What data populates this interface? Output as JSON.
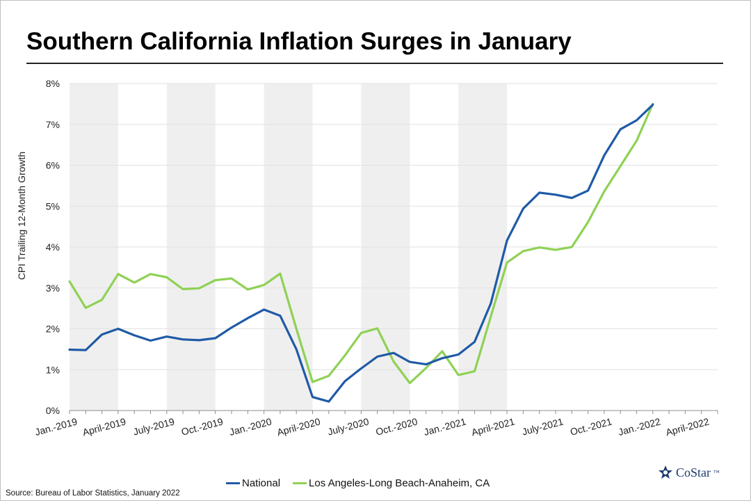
{
  "title": "Southern California Inflation Surges in January",
  "source": "Source: Bureau of Labor Statistics, January 2022",
  "logo_text": "CoStar",
  "logo_tm": "™",
  "colors": {
    "national": "#1f5aa6",
    "la": "#8fd155",
    "band": "#efefef",
    "grid": "#e2e2e2"
  },
  "chart_data": {
    "type": "line",
    "title": "Southern California Inflation Surges in January",
    "ylabel": "CPI Trailing 12-Month Growth",
    "xlabel": "",
    "ylim": [
      0,
      8
    ],
    "y_ticks": [
      "0%",
      "1%",
      "2%",
      "3%",
      "4%",
      "5%",
      "6%",
      "7%",
      "8%"
    ],
    "x_tick_labels": [
      "Jan.-2019",
      "April-2019",
      "July-2019",
      "Oct.-2019",
      "Jan.-2020",
      "April-2020",
      "July-2020",
      "Oct.-2020",
      "Jan.-2021",
      "April-2021",
      "July-2021",
      "Oct.-2021",
      "Jan.-2022",
      "April-2022"
    ],
    "x": [
      "Jan.-2019",
      "Feb.-2019",
      "Mar.-2019",
      "April-2019",
      "May-2019",
      "June-2019",
      "July-2019",
      "Aug.-2019",
      "Sep.-2019",
      "Oct.-2019",
      "Nov.-2019",
      "Dec.-2019",
      "Jan.-2020",
      "Feb.-2020",
      "Mar.-2020",
      "April-2020",
      "May-2020",
      "June-2020",
      "July-2020",
      "Aug.-2020",
      "Sep.-2020",
      "Oct.-2020",
      "Nov.-2020",
      "Dec.-2020",
      "Jan.-2021",
      "Feb.-2021",
      "Mar.-2021",
      "April-2021",
      "May-2021",
      "June-2021",
      "July-2021",
      "Aug.-2021",
      "Sep.-2021",
      "Oct.-2021",
      "Nov.-2021",
      "Dec.-2021",
      "Jan.-2022"
    ],
    "series": [
      {
        "name": "National",
        "values": [
          1.49,
          1.48,
          1.86,
          2.0,
          1.84,
          1.71,
          1.81,
          1.74,
          1.72,
          1.77,
          2.03,
          2.26,
          2.47,
          2.32,
          1.5,
          0.33,
          0.22,
          0.72,
          1.03,
          1.32,
          1.41,
          1.19,
          1.13,
          1.28,
          1.37,
          1.68,
          2.62,
          4.16,
          4.94,
          5.33,
          5.28,
          5.2,
          5.38,
          6.24,
          6.88,
          7.1,
          7.48
        ]
      },
      {
        "name": "Los Angeles-Long Beach-Anaheim, CA",
        "values": [
          3.16,
          2.51,
          2.71,
          3.34,
          3.13,
          3.34,
          3.26,
          2.97,
          2.99,
          3.19,
          3.23,
          2.96,
          3.07,
          3.35,
          2.0,
          0.7,
          0.85,
          1.35,
          1.9,
          2.01,
          1.2,
          0.67,
          1.04,
          1.45,
          0.87,
          0.96,
          2.3,
          3.62,
          3.9,
          3.99,
          3.93,
          4.0,
          4.61,
          5.36,
          5.98,
          6.6,
          7.5
        ]
      }
    ],
    "grid": true,
    "shaded_bands": "alternating quarters",
    "legend_position": "bottom"
  }
}
